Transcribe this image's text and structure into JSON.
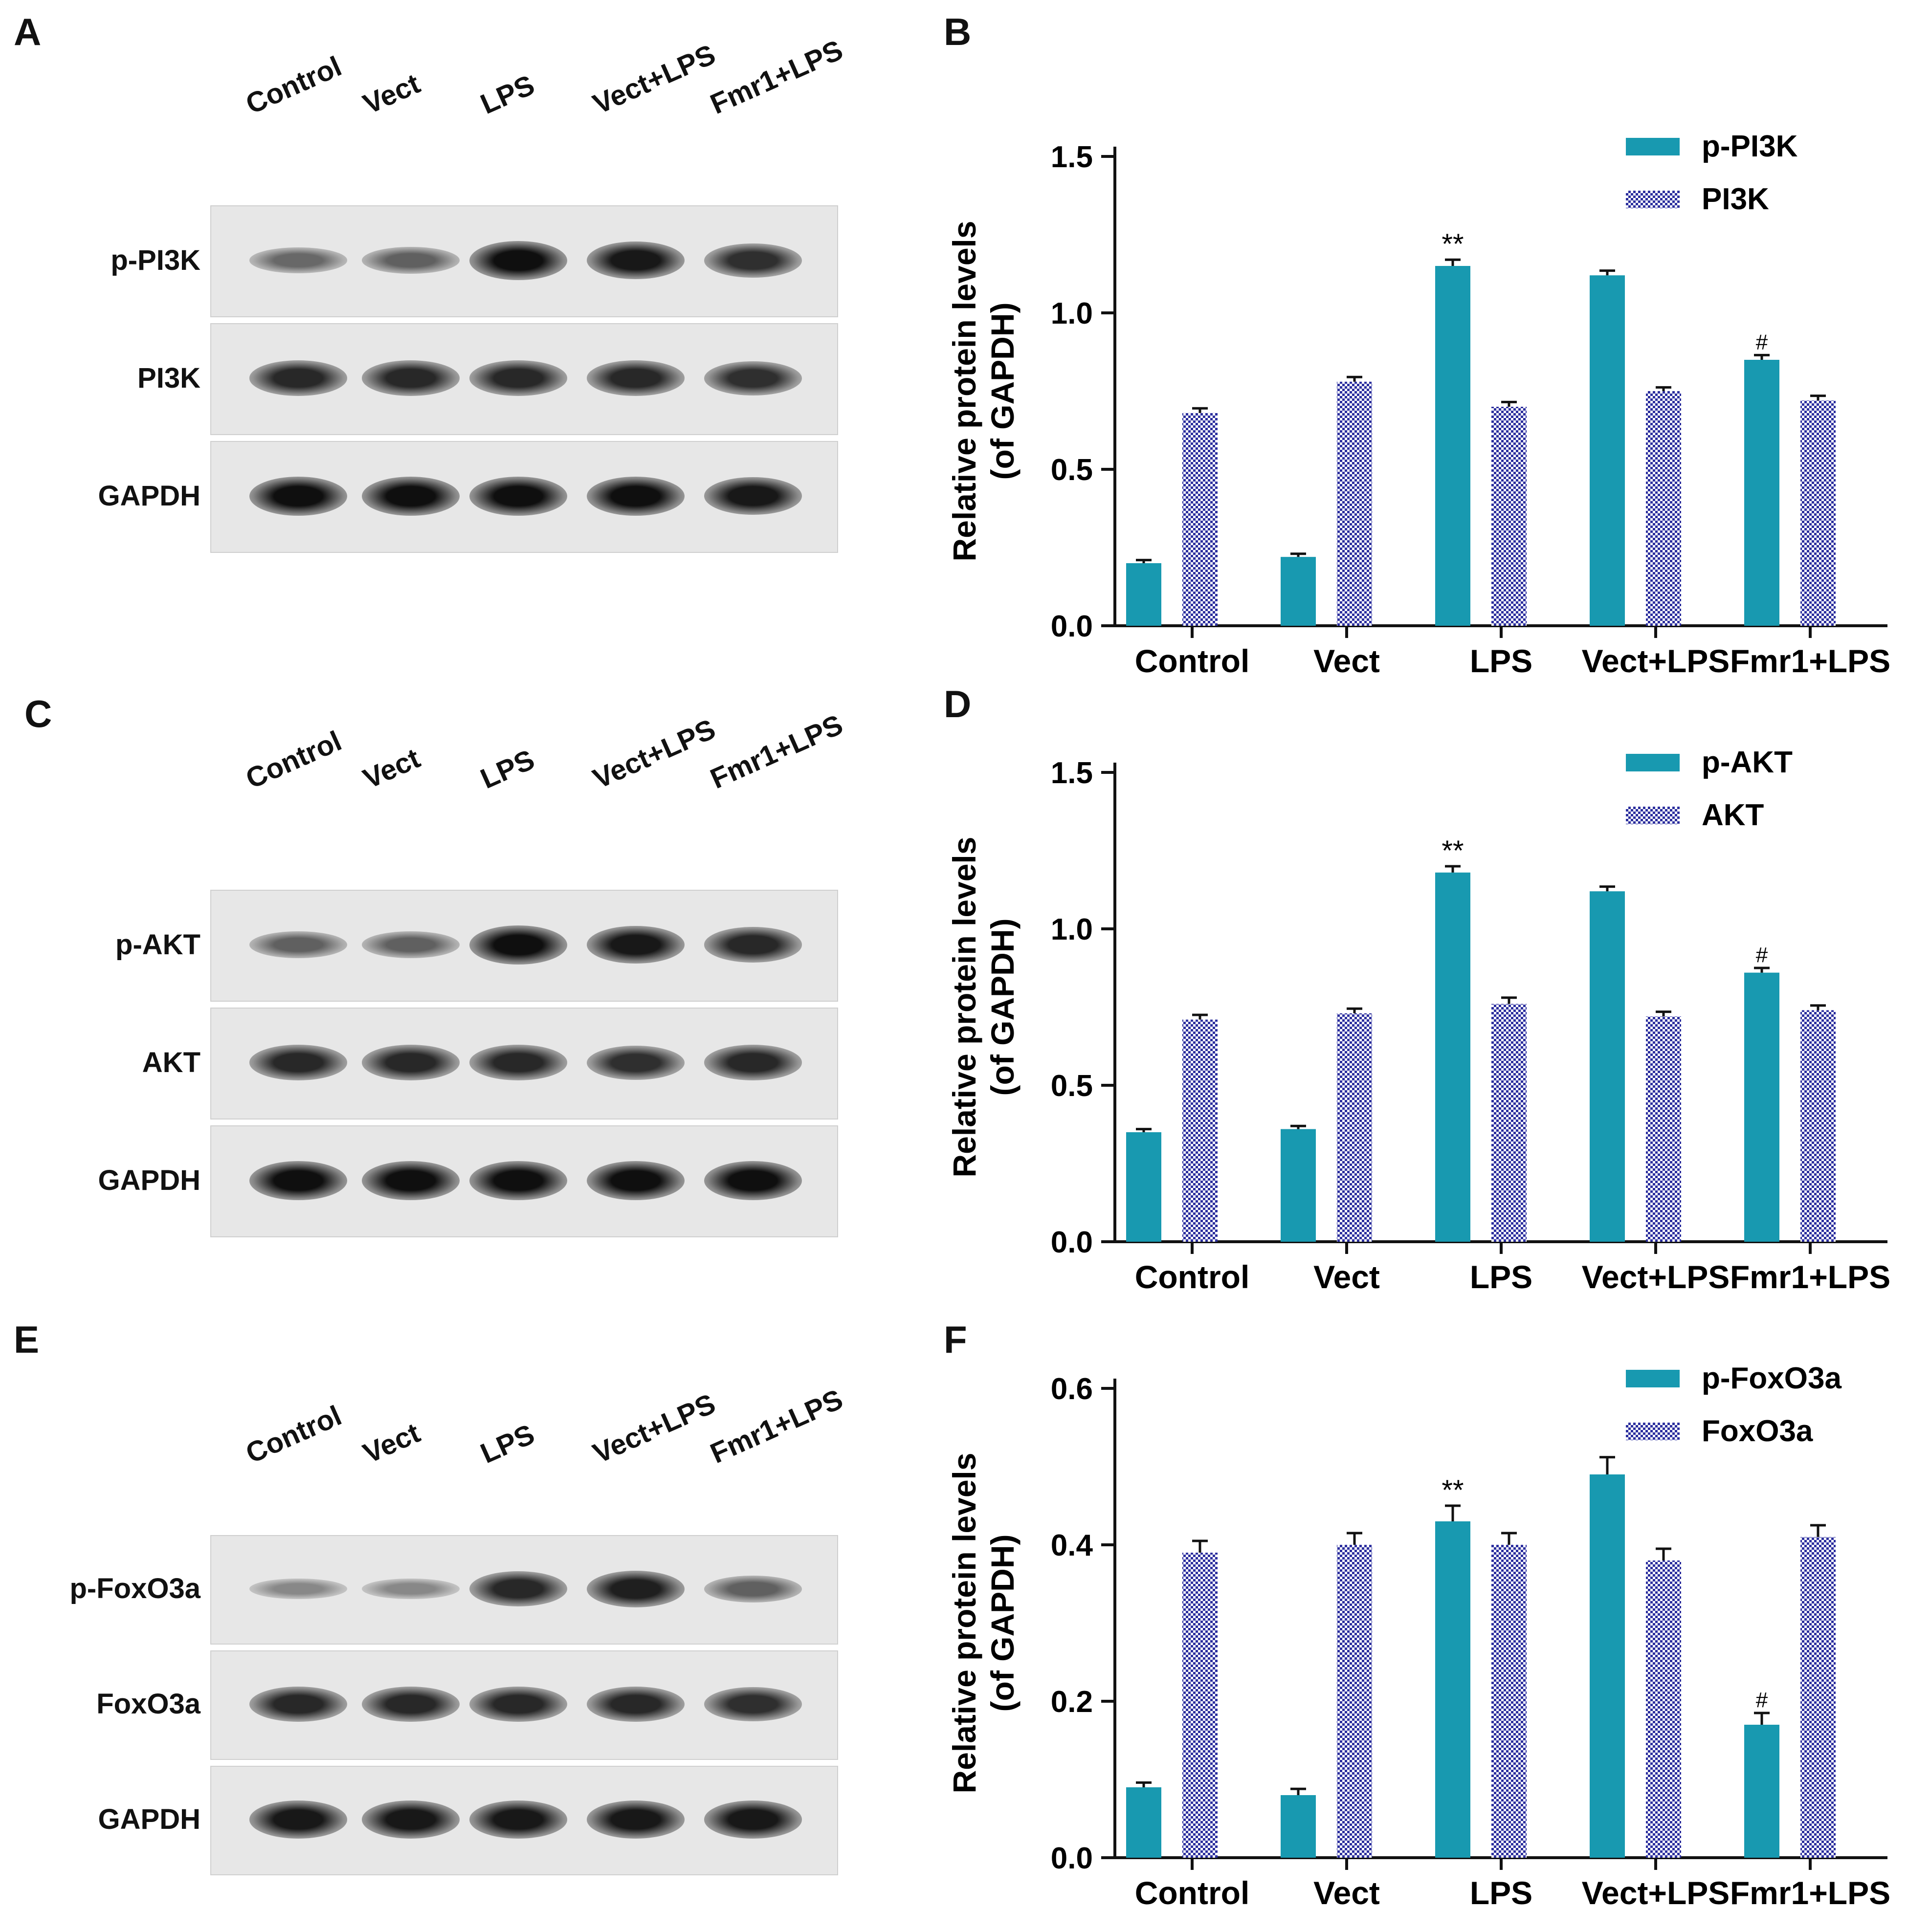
{
  "panels": {
    "A": "A",
    "B": "B",
    "C": "C",
    "D": "D",
    "E": "E",
    "F": "F"
  },
  "lanes": [
    "Control",
    "Vect",
    "LPS",
    "Vect+LPS",
    "Fmr1+LPS"
  ],
  "blots": [
    {
      "rows": [
        {
          "label": "p-PI3K",
          "intensity": [
            0.45,
            0.5,
            1.0,
            0.95,
            0.8
          ]
        },
        {
          "label": "PI3K",
          "intensity": [
            0.85,
            0.85,
            0.85,
            0.85,
            0.8
          ]
        },
        {
          "label": "GAPDH",
          "intensity": [
            1.0,
            1.0,
            1.0,
            1.0,
            0.95
          ]
        }
      ]
    },
    {
      "rows": [
        {
          "label": "p-AKT",
          "intensity": [
            0.5,
            0.5,
            1.0,
            0.95,
            0.85
          ]
        },
        {
          "label": "AKT",
          "intensity": [
            0.85,
            0.85,
            0.85,
            0.8,
            0.85
          ]
        },
        {
          "label": "GAPDH",
          "intensity": [
            1.0,
            1.0,
            1.0,
            1.0,
            1.0
          ]
        }
      ]
    },
    {
      "rows": [
        {
          "label": "p-FoxO3a",
          "intensity": [
            0.25,
            0.25,
            0.85,
            0.9,
            0.5
          ]
        },
        {
          "label": "FoxO3a",
          "intensity": [
            0.85,
            0.85,
            0.85,
            0.85,
            0.8
          ]
        },
        {
          "label": "GAPDH",
          "intensity": [
            0.95,
            0.95,
            0.95,
            0.95,
            0.95
          ]
        }
      ]
    }
  ],
  "colors": {
    "teal": "#1899b0",
    "navy": "#2c2f9e",
    "band_dark": "#111111"
  },
  "chart_data": [
    {
      "type": "bar",
      "categories": [
        "Control",
        "Vect",
        "LPS",
        "Vect+LPS",
        "Fmr1+LPS"
      ],
      "ylabel_line1": "Relative protein levels",
      "ylabel_line2": "(of GAPDH)",
      "ylim": [
        0,
        1.5
      ],
      "yticks": [
        "0.0",
        "0.5",
        "1.0",
        "1.5"
      ],
      "ytick_values": [
        0,
        0.5,
        1.0,
        1.5
      ],
      "legend_position": "top-right",
      "series": [
        {
          "name": "p-PI3K",
          "values": [
            0.2,
            0.22,
            1.15,
            1.12,
            0.85
          ],
          "errors": [
            0.01,
            0.01,
            0.02,
            0.015,
            0.015
          ],
          "annotations": [
            "",
            "",
            "**",
            "",
            "#"
          ]
        },
        {
          "name": "PI3K",
          "values": [
            0.68,
            0.78,
            0.7,
            0.75,
            0.72
          ],
          "errors": [
            0.015,
            0.015,
            0.015,
            0.012,
            0.015
          ],
          "annotations": [
            "",
            "",
            "",
            "",
            ""
          ]
        }
      ]
    },
    {
      "type": "bar",
      "categories": [
        "Control",
        "Vect",
        "LPS",
        "Vect+LPS",
        "Fmr1+LPS"
      ],
      "ylabel_line1": "Relative protein levels",
      "ylabel_line2": "(of GAPDH)",
      "ylim": [
        0,
        1.5
      ],
      "yticks": [
        "0.0",
        "0.5",
        "1.0",
        "1.5"
      ],
      "ytick_values": [
        0,
        0.5,
        1.0,
        1.5
      ],
      "legend_position": "top-right",
      "series": [
        {
          "name": "p-AKT",
          "values": [
            0.35,
            0.36,
            1.18,
            1.12,
            0.86
          ],
          "errors": [
            0.01,
            0.01,
            0.02,
            0.015,
            0.015
          ],
          "annotations": [
            "",
            "",
            "**",
            "",
            "#"
          ]
        },
        {
          "name": "AKT",
          "values": [
            0.71,
            0.73,
            0.76,
            0.72,
            0.74
          ],
          "errors": [
            0.015,
            0.015,
            0.02,
            0.015,
            0.015
          ],
          "annotations": [
            "",
            "",
            "",
            "",
            ""
          ]
        }
      ]
    },
    {
      "type": "bar",
      "categories": [
        "Control",
        "Vect",
        "LPS",
        "Vect+LPS",
        "Fmr1+LPS"
      ],
      "ylabel_line1": "Relative protein levels",
      "ylabel_line2": "(of GAPDH)",
      "ylim": [
        0,
        0.6
      ],
      "yticks": [
        "0.0",
        "0.2",
        "0.4",
        "0.6"
      ],
      "ytick_values": [
        0,
        0.2,
        0.4,
        0.6
      ],
      "legend_position": "top-right",
      "series": [
        {
          "name": "p-FoxO3a",
          "values": [
            0.09,
            0.08,
            0.43,
            0.49,
            0.17
          ],
          "errors": [
            0.006,
            0.008,
            0.02,
            0.022,
            0.015
          ],
          "annotations": [
            "",
            "",
            "**",
            "",
            "#"
          ]
        },
        {
          "name": "FoxO3a",
          "values": [
            0.39,
            0.4,
            0.4,
            0.38,
            0.41
          ],
          "errors": [
            0.015,
            0.015,
            0.015,
            0.015,
            0.015
          ],
          "annotations": [
            "",
            "",
            "",
            "",
            ""
          ]
        }
      ]
    }
  ]
}
